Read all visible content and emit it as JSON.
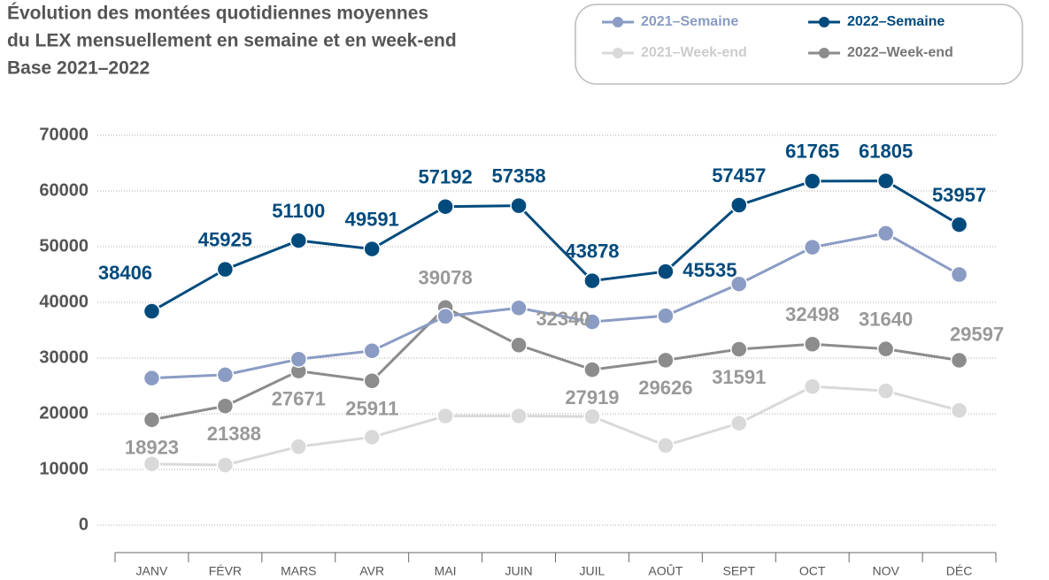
{
  "chart_data": {
    "type": "line",
    "title": [
      "Évolution des montées quotidiennes moyennes",
      "du LEX mensuellement en semaine et en week-end",
      "Base 2021–2022"
    ],
    "categories": [
      "JANV",
      "FÉVR",
      "MARS",
      "AVR",
      "MAI",
      "JUIN",
      "JUIL",
      "AOÛT",
      "SEPT",
      "OCT",
      "NOV",
      "DÉC"
    ],
    "series": [
      {
        "name": "2021–Semaine",
        "color": "#8a9cc4",
        "values": [
          26400,
          27000,
          29800,
          31300,
          37500,
          39000,
          36500,
          37600,
          43300,
          49900,
          52400,
          45000
        ],
        "labels": false
      },
      {
        "name": "2022–Semaine",
        "color": "#004a7c",
        "values": [
          38406,
          45925,
          51100,
          49591,
          57192,
          57358,
          43878,
          45535,
          57457,
          61765,
          61805,
          53957
        ],
        "labels": true
      },
      {
        "name": "2021–Week-end",
        "color": "#d9d9d9",
        "values": [
          11000,
          10800,
          14100,
          15800,
          19600,
          19600,
          19500,
          14300,
          18300,
          24900,
          24100,
          20600
        ],
        "labels": false
      },
      {
        "name": "2022–Week-end",
        "color": "#8c8c8c",
        "values": [
          18923,
          21388,
          27671,
          25911,
          39078,
          32340,
          27919,
          29626,
          31591,
          32498,
          31640,
          29597
        ],
        "labels": true
      }
    ],
    "ylim": [
      0,
      70000
    ],
    "yticks": [
      0,
      10000,
      20000,
      30000,
      40000,
      50000,
      60000,
      70000
    ],
    "grid": true,
    "legend": "top-right"
  }
}
